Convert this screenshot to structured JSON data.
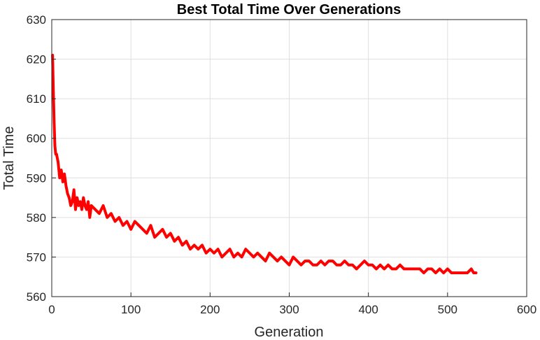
{
  "chart_data": {
    "type": "line",
    "title": "Best Total Time Over Generations",
    "xlabel": "Generation",
    "ylabel": "Total Time",
    "xlim": [
      0,
      600
    ],
    "ylim": [
      560,
      630
    ],
    "xticks": [
      0,
      100,
      200,
      300,
      400,
      500,
      600
    ],
    "yticks": [
      560,
      570,
      580,
      590,
      600,
      610,
      620,
      630
    ],
    "grid": true,
    "series": [
      {
        "color": "#ff0000",
        "x": [
          1,
          2,
          3,
          4,
          5,
          6,
          8,
          10,
          12,
          14,
          16,
          18,
          20,
          22,
          24,
          26,
          28,
          30,
          32,
          34,
          36,
          38,
          40,
          42,
          44,
          46,
          48,
          50,
          55,
          60,
          65,
          70,
          75,
          80,
          85,
          90,
          95,
          100,
          105,
          110,
          115,
          120,
          125,
          130,
          135,
          140,
          145,
          150,
          155,
          160,
          165,
          170,
          175,
          180,
          185,
          190,
          195,
          200,
          205,
          210,
          215,
          220,
          225,
          230,
          235,
          240,
          245,
          250,
          255,
          260,
          265,
          270,
          275,
          280,
          285,
          290,
          295,
          300,
          305,
          310,
          315,
          320,
          325,
          330,
          335,
          340,
          345,
          350,
          355,
          360,
          365,
          370,
          375,
          380,
          385,
          390,
          395,
          400,
          405,
          410,
          415,
          420,
          425,
          430,
          435,
          440,
          445,
          450,
          455,
          460,
          465,
          470,
          475,
          480,
          485,
          490,
          495,
          500,
          505,
          510,
          515,
          520,
          525,
          530,
          533,
          536
        ],
        "y": [
          621,
          612,
          604,
          598,
          596,
          596,
          594,
          590,
          592,
          589,
          591,
          588,
          586,
          585,
          583,
          584,
          587,
          582,
          585,
          583,
          584,
          582,
          585,
          583,
          582,
          584,
          580,
          583,
          582,
          581,
          583,
          580,
          581,
          579,
          580,
          578,
          579,
          577,
          579,
          578,
          577,
          576,
          578,
          575,
          576,
          577,
          575,
          576,
          574,
          575,
          573,
          574,
          572,
          573,
          572,
          573,
          571,
          572,
          571,
          572,
          570,
          571,
          572,
          570,
          571,
          570,
          572,
          571,
          570,
          571,
          570,
          569,
          571,
          570,
          569,
          570,
          569,
          568,
          570,
          569,
          568,
          569,
          569,
          568,
          568,
          569,
          568,
          569,
          569,
          568,
          568,
          569,
          568,
          568,
          567,
          568,
          569,
          568,
          568,
          567,
          568,
          567,
          568,
          567,
          567,
          568,
          567,
          567,
          567,
          567,
          567,
          566,
          567,
          567,
          566,
          567,
          566,
          567,
          566,
          566,
          566,
          566,
          566,
          567,
          566,
          566
        ]
      }
    ]
  }
}
